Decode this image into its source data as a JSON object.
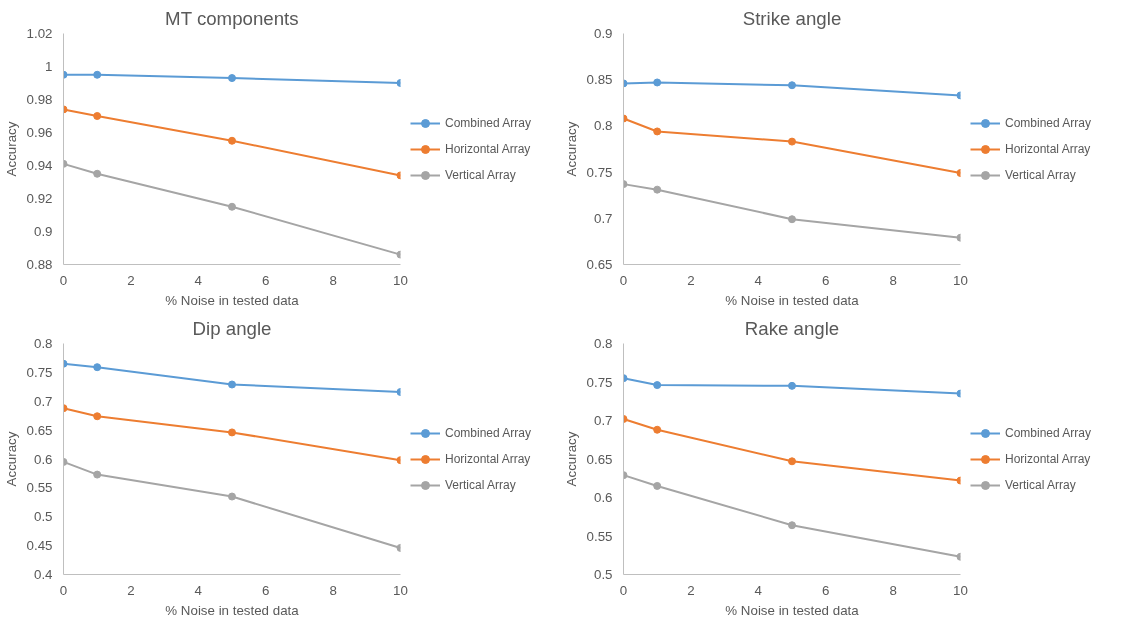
{
  "chart_data": [
    {
      "type": "line",
      "title": "MT components",
      "xlabel": "% Noise in tested data",
      "ylabel": "Accuracy",
      "x": [
        0,
        1,
        5,
        10
      ],
      "xlim": [
        0,
        10
      ],
      "xticks": [
        0,
        2,
        4,
        6,
        8,
        10
      ],
      "ylim": [
        0.88,
        1.02
      ],
      "yticks": [
        0.88,
        0.9,
        0.92,
        0.94,
        0.96,
        0.98,
        1,
        1.02
      ],
      "grid": false,
      "legend": "right",
      "marker": "circle",
      "line_style": "solid",
      "series": [
        {
          "name": "Combined Array",
          "color": "#5b9bd5",
          "values": [
            0.995,
            0.995,
            0.993,
            0.99
          ]
        },
        {
          "name": "Horizontal Array",
          "color": "#ed7d31",
          "values": [
            0.974,
            0.97,
            0.955,
            0.934
          ]
        },
        {
          "name": "Vertical Array",
          "color": "#a5a5a5",
          "values": [
            0.941,
            0.935,
            0.915,
            0.886
          ]
        }
      ]
    },
    {
      "type": "line",
      "title": "Strike angle",
      "xlabel": "% Noise in tested data",
      "ylabel": "Accuracy",
      "x": [
        0,
        1,
        5,
        10
      ],
      "xlim": [
        0,
        10
      ],
      "xticks": [
        0,
        2,
        4,
        6,
        8,
        10
      ],
      "ylim": [
        0.65,
        0.9
      ],
      "yticks": [
        0.65,
        0.7,
        0.75,
        0.8,
        0.85,
        0.9
      ],
      "grid": false,
      "legend": "right",
      "marker": "circle",
      "line_style": "solid",
      "series": [
        {
          "name": "Combined Array",
          "color": "#5b9bd5",
          "values": [
            0.846,
            0.847,
            0.844,
            0.833
          ]
        },
        {
          "name": "Horizontal Array",
          "color": "#ed7d31",
          "values": [
            0.808,
            0.794,
            0.783,
            0.749
          ]
        },
        {
          "name": "Vertical Array",
          "color": "#a5a5a5",
          "values": [
            0.737,
            0.731,
            0.699,
            0.679
          ]
        }
      ]
    },
    {
      "type": "line",
      "title": "Dip angle",
      "xlabel": "% Noise in tested data",
      "ylabel": "Accuracy",
      "x": [
        0,
        1,
        5,
        10
      ],
      "xlim": [
        0,
        10
      ],
      "xticks": [
        0,
        2,
        4,
        6,
        8,
        10
      ],
      "ylim": [
        0.4,
        0.8
      ],
      "yticks": [
        0.4,
        0.45,
        0.5,
        0.55,
        0.6,
        0.65,
        0.7,
        0.75,
        0.8
      ],
      "grid": false,
      "legend": "right",
      "marker": "circle",
      "line_style": "solid",
      "series": [
        {
          "name": "Combined Array",
          "color": "#5b9bd5",
          "values": [
            0.765,
            0.759,
            0.729,
            0.716
          ]
        },
        {
          "name": "Horizontal Array",
          "color": "#ed7d31",
          "values": [
            0.688,
            0.674,
            0.646,
            0.598
          ]
        },
        {
          "name": "Vertical Array",
          "color": "#a5a5a5",
          "values": [
            0.595,
            0.573,
            0.535,
            0.446
          ]
        }
      ]
    },
    {
      "type": "line",
      "title": "Rake angle",
      "xlabel": "% Noise in tested data",
      "ylabel": "Accuracy",
      "x": [
        0,
        1,
        5,
        10
      ],
      "xlim": [
        0,
        10
      ],
      "xticks": [
        0,
        2,
        4,
        6,
        8,
        10
      ],
      "ylim": [
        0.5,
        0.8
      ],
      "yticks": [
        0.5,
        0.55,
        0.6,
        0.65,
        0.7,
        0.75,
        0.8
      ],
      "grid": false,
      "legend": "right",
      "marker": "circle",
      "line_style": "solid",
      "series": [
        {
          "name": "Combined Array",
          "color": "#5b9bd5",
          "values": [
            0.755,
            0.746,
            0.745,
            0.735
          ]
        },
        {
          "name": "Horizontal Array",
          "color": "#ed7d31",
          "values": [
            0.702,
            0.688,
            0.647,
            0.622
          ]
        },
        {
          "name": "Vertical Array",
          "color": "#a5a5a5",
          "values": [
            0.629,
            0.615,
            0.564,
            0.523
          ]
        }
      ]
    }
  ]
}
